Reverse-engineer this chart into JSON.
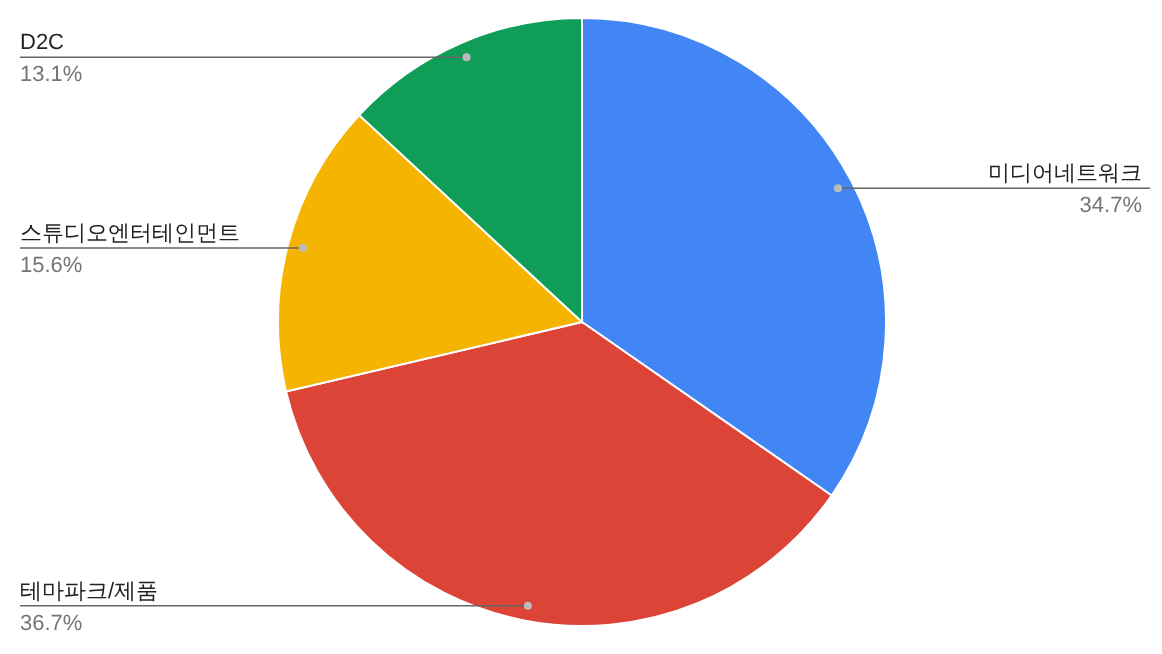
{
  "chart_data": {
    "type": "pie",
    "categories": [
      "미디어네트워크",
      "테마파크/제품",
      "스튜디오엔터테인먼트",
      "D2C"
    ],
    "values": [
      34.7,
      36.7,
      15.6,
      13.1
    ],
    "colors": [
      "#4285f4",
      "#db4437",
      "#f4b400",
      "#0f9d58"
    ],
    "value_labels": [
      "34.7%",
      "36.7%",
      "15.6%",
      "13.1%"
    ],
    "legend": false
  }
}
